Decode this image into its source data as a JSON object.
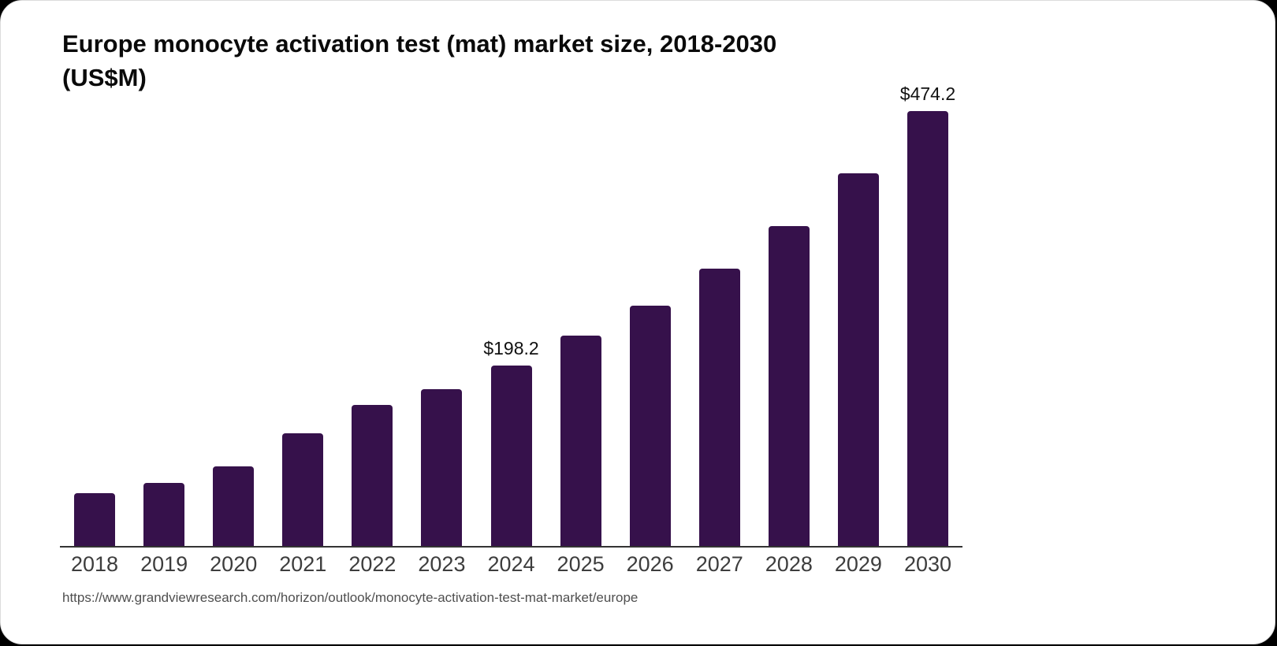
{
  "page": {
    "outer_background": "#000000",
    "card_background": "#ffffff"
  },
  "chart": {
    "title_line1": "Europe monocyte activation test (mat) market size, 2018-2030",
    "title_line2": "(US$M)"
  },
  "source": {
    "url": "https://www.grandviewresearch.com/horizon/outlook/monocyte-activation-test-mat-market/europe"
  },
  "chart_data": {
    "type": "bar",
    "title": "Europe monocyte activation test (mat) market size, 2018-2030 (US$M)",
    "categories": [
      "2018",
      "2019",
      "2020",
      "2021",
      "2022",
      "2023",
      "2024",
      "2025",
      "2026",
      "2027",
      "2028",
      "2029",
      "2030"
    ],
    "values": [
      59.1,
      70.4,
      88.2,
      123.9,
      154.7,
      172.4,
      198.2,
      230.3,
      263.1,
      302.9,
      349.5,
      407.0,
      474.2
    ],
    "data_labels": [
      "",
      "",
      "",
      "",
      "",
      "",
      "$198.2",
      "",
      "",
      "",
      "",
      "",
      "$474.2"
    ],
    "xlabel": "",
    "ylabel": "",
    "ylim": [
      0,
      500
    ],
    "grid": false,
    "legend": false,
    "bar_color": "#36114b",
    "axis_line_color": "#333333",
    "tick_label_color": "#3d3d3d",
    "data_label_color": "#111111"
  }
}
